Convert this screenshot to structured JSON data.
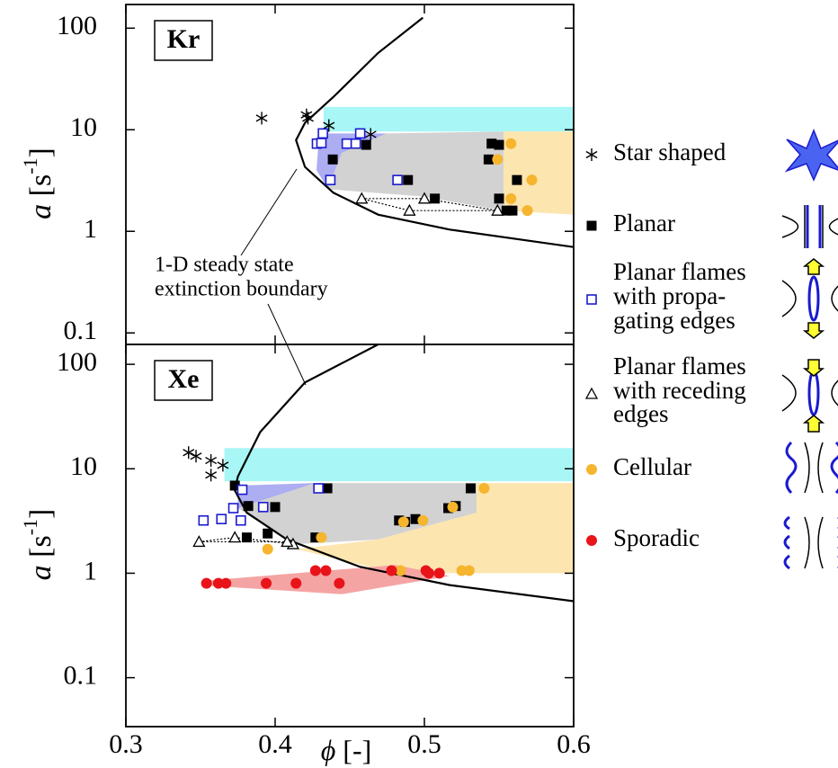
{
  "chart_data": [
    {
      "type": "scatter",
      "panel_label": "Kr",
      "log_y": true,
      "ylim": [
        0.077,
        171
      ],
      "yticks": [
        {
          "value": 0.1,
          "label": "0.1"
        },
        1,
        10,
        100
      ],
      "ylabel": {
        "symbol": "a",
        "unit": " [s",
        "exp": "-1",
        "close": "]"
      },
      "annotation": [
        "1-D steady state",
        "extinction boundary"
      ],
      "curve": {
        "x": [
          0.499,
          0.469,
          0.439,
          0.42,
          0.414,
          0.42,
          0.439,
          0.469,
          0.517,
          0.6
        ],
        "y": [
          127,
          57,
          21,
          11.7,
          7.9,
          4.3,
          2.4,
          1.46,
          1.04,
          0.7
        ]
      },
      "regions": [
        {
          "color": "#a8f6f6",
          "x": [
            0.4325,
            0.6,
            0.6,
            0.4325
          ],
          "y": [
            9.6,
            9.6,
            16.8,
            16.8
          ]
        },
        {
          "color": "#adadf2",
          "x": [
            0.4295,
            0.4747,
            0.4446,
            0.4355,
            0.4277
          ],
          "y": [
            9.2,
            9.2,
            5.9,
            2.6,
            4.0
          ]
        },
        {
          "color": "#d2d2d2",
          "x": [
            0.4747,
            0.553,
            0.553,
            0.4988,
            0.4355,
            0.4446
          ],
          "y": [
            9.2,
            9.6,
            1.6,
            2.2,
            2.6,
            5.9
          ]
        },
        {
          "color": "#fde5b0",
          "x": [
            0.553,
            0.6,
            0.6,
            0.553
          ],
          "y": [
            9.6,
            9.6,
            1.46,
            1.6
          ]
        }
      ],
      "series": [
        {
          "name": [
            "Star shaped"
          ],
          "marker": "star",
          "color": "#000000",
          "x": [
            0.391,
            0.421,
            0.422,
            0.436,
            0.464
          ],
          "y": [
            13,
            14,
            13,
            11,
            9
          ]
        },
        {
          "name": [
            "Planar"
          ],
          "marker": "square",
          "color": "#000000",
          "x": [
            0.4386,
            0.461,
            0.489,
            0.507,
            0.543,
            0.545,
            0.55,
            0.55,
            0.555,
            0.559,
            0.562
          ],
          "y": [
            5.1,
            7.1,
            3.2,
            2.1,
            5.1,
            7.3,
            7.1,
            2.1,
            1.6,
            1.6,
            3.2
          ]
        },
        {
          "name": [
            "Planar flames",
            "with propa-",
            "gating edges"
          ],
          "marker": "open-square",
          "color": "#1a1ad0",
          "x": [
            0.428,
            0.432,
            0.431,
            0.437,
            0.448,
            0.454,
            0.457,
            0.482
          ],
          "y": [
            7.3,
            9.2,
            7.4,
            3.2,
            7.3,
            7.3,
            9.2,
            3.2
          ]
        },
        {
          "name": [
            "Planar flames",
            "with receding",
            "edges"
          ],
          "marker": "triangle",
          "color": "#000000",
          "x": [
            0.458,
            0.5,
            0.549,
            0.49
          ],
          "y": [
            2.1,
            2.1,
            1.6,
            1.6
          ]
        },
        {
          "name": [
            "Cellular"
          ],
          "marker": "circle",
          "color": "#f5b52e",
          "x": [
            0.558,
            0.549,
            0.558,
            0.572,
            0.569
          ],
          "y": [
            7.3,
            5.1,
            2.1,
            3.2,
            1.6
          ]
        },
        {
          "name": [
            "Sporadic"
          ],
          "marker": "circle",
          "color": "#e8141a",
          "x": [],
          "y": []
        }
      ]
    },
    {
      "type": "scatter",
      "panel_label": "Xe",
      "log_y": true,
      "ylim": [
        0.034,
        155
      ],
      "yticks": [
        {
          "value": 0.1,
          "label": "0.1"
        },
        1,
        10,
        100
      ],
      "xlim": [
        0.3,
        0.6
      ],
      "xticks": [
        0.3,
        0.4,
        0.5,
        0.6
      ],
      "ylabel": {
        "symbol": "a",
        "unit": " [s",
        "exp": "-1",
        "close": "]"
      },
      "xlabel": {
        "symbol": "ϕ",
        "unit": " [-]"
      },
      "curve": {
        "x": [
          0.469,
          0.42,
          0.39,
          0.375,
          0.373,
          0.381,
          0.408,
          0.457,
          0.517,
          0.6
        ],
        "y": [
          155,
          67,
          22.5,
          8.4,
          6.2,
          3.8,
          2.1,
          1.15,
          0.77,
          0.54
        ]
      },
      "regions": [
        {
          "color": "#a8f6f6",
          "x": [
            0.366,
            0.6,
            0.6,
            0.366
          ],
          "y": [
            7.6,
            7.6,
            15.8,
            15.8
          ]
        },
        {
          "color": "#adadf2",
          "x": [
            0.375,
            0.4265,
            0.408,
            0.375
          ],
          "y": [
            6.9,
            7.3,
            4.6,
            4.2
          ]
        },
        {
          "color": "#d2d2d2",
          "x": [
            0.4265,
            0.535,
            0.535,
            0.4687,
            0.4145,
            0.375
          ],
          "y": [
            7.3,
            7.3,
            3.8,
            2.1,
            1.9,
            4.2
          ]
        },
        {
          "color": "#fde5b0",
          "x": [
            0.535,
            0.6,
            0.6,
            0.4807,
            0.4145,
            0.4687,
            0.535
          ],
          "y": [
            7.3,
            7.3,
            1.0,
            1.0,
            1.7,
            2.1,
            3.8
          ]
        },
        {
          "color": "#f5a4a4",
          "x": [
            0.354,
            0.4807,
            0.517,
            0.4446,
            0.354
          ],
          "y": [
            0.85,
            1.2,
            0.94,
            0.63,
            0.76
          ]
        }
      ],
      "series": [
        {
          "marker": "star",
          "color": "#000000",
          "x": [
            0.342,
            0.347,
            0.357,
            0.365,
            0.357
          ],
          "y": [
            14.3,
            13.2,
            12,
            10.8,
            8.7
          ]
        },
        {
          "marker": "square",
          "color": "#000000",
          "x": [
            0.373,
            0.382,
            0.4,
            0.395,
            0.381,
            0.427,
            0.435,
            0.483,
            0.487,
            0.494,
            0.516,
            0.521,
            0.531
          ],
          "y": [
            6.9,
            4.4,
            4.3,
            2.4,
            2.2,
            2.2,
            6.5,
            3.2,
            3.1,
            3.3,
            4.2,
            4.4,
            6.5
          ]
        },
        {
          "marker": "open-square",
          "color": "#1a1ad0",
          "x": [
            0.352,
            0.364,
            0.372,
            0.377,
            0.378,
            0.392,
            0.429
          ],
          "y": [
            3.2,
            3.3,
            4.2,
            3.2,
            6.3,
            4.3,
            6.5
          ]
        },
        {
          "marker": "triangle",
          "color": "#000000",
          "x": [
            0.349,
            0.373,
            0.412,
            0.408
          ],
          "y": [
            2.0,
            2.2,
            1.9,
            2.0
          ]
        },
        {
          "marker": "circle",
          "color": "#f5b52e",
          "x": [
            0.395,
            0.431,
            0.486,
            0.499,
            0.519,
            0.54,
            0.484,
            0.525,
            0.53
          ],
          "y": [
            1.7,
            2.2,
            3.1,
            3.2,
            4.3,
            6.5,
            1.06,
            1.06,
            1.06
          ]
        },
        {
          "marker": "circle",
          "color": "#e8141a",
          "x": [
            0.354,
            0.362,
            0.367,
            0.394,
            0.414,
            0.427,
            0.434,
            0.443,
            0.478,
            0.501,
            0.51,
            0.503
          ],
          "y": [
            0.8,
            0.8,
            0.8,
            0.8,
            0.8,
            1.06,
            1.06,
            0.8,
            1.06,
            1.06,
            1.0,
            1.0
          ]
        }
      ]
    }
  ]
}
